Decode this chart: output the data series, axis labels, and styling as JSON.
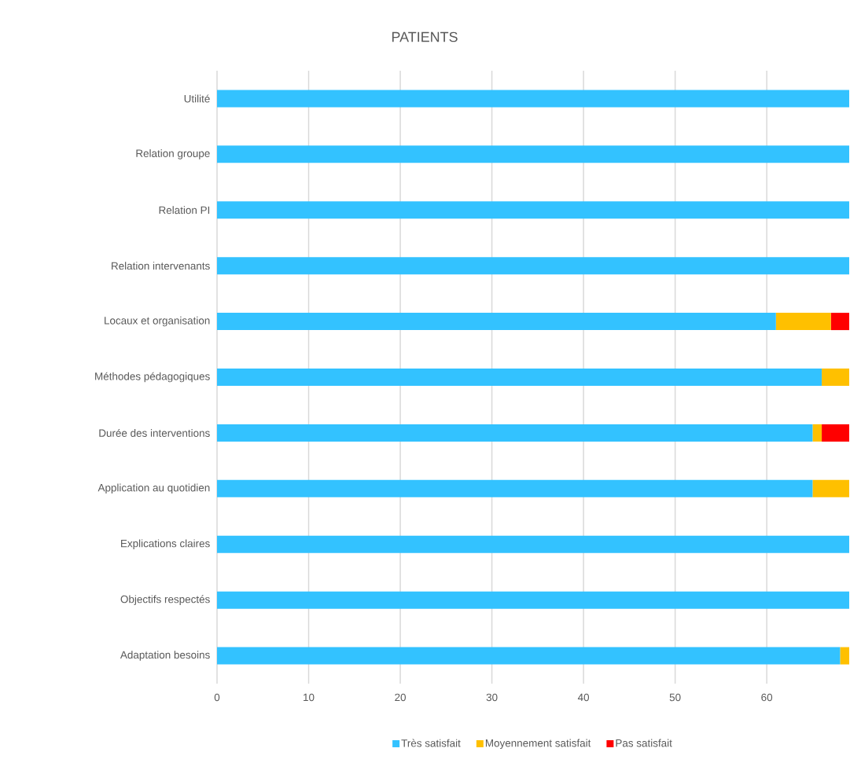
{
  "chart_data": {
    "type": "bar",
    "orientation": "horizontal",
    "stacked": true,
    "title": "PATIENTS",
    "categories": [
      "Utilité",
      "Relation groupe",
      "Relation PI",
      "Relation intervenants",
      "Locaux et organisation",
      "Méthodes pédagogiques",
      "Durée des interventions",
      "Application au quotidien",
      "Explications claires",
      "Objectifs respectés",
      "Adaptation besoins"
    ],
    "series": [
      {
        "name": "Très satisfait",
        "color": "#33c2ff",
        "values": [
          69,
          69,
          69,
          69,
          61,
          66,
          65,
          65,
          69,
          69,
          68
        ]
      },
      {
        "name": "Moyennement satisfait",
        "color": "#ffc000",
        "values": [
          0,
          0,
          0,
          0,
          6,
          3,
          1,
          4,
          0,
          0,
          1
        ]
      },
      {
        "name": "Pas satisfait",
        "color": "#ff0000",
        "values": [
          0,
          0,
          0,
          0,
          2,
          0,
          3,
          0,
          0,
          0,
          0
        ]
      }
    ],
    "xlim": [
      0,
      69
    ],
    "xticks": [
      0,
      10,
      20,
      30,
      40,
      50,
      60
    ],
    "grid": "x",
    "legend": "bottom"
  }
}
